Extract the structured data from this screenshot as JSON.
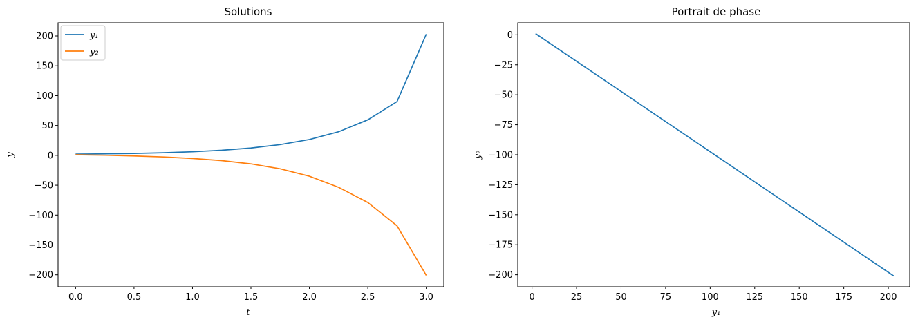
{
  "chart_data": [
    {
      "type": "line",
      "title": "Solutions",
      "xlabel": "t",
      "ylabel": "y",
      "xlim": [
        -0.15,
        3.15
      ],
      "ylim": [
        -220,
        222
      ],
      "xticks": [
        0.0,
        0.5,
        1.0,
        1.5,
        2.0,
        2.5,
        3.0
      ],
      "xtick_labels": [
        "0.0",
        "0.5",
        "1.0",
        "1.5",
        "2.0",
        "2.5",
        "3.0"
      ],
      "yticks": [
        -200,
        -150,
        -100,
        -50,
        0,
        50,
        100,
        150,
        200
      ],
      "ytick_labels": [
        "−200",
        "−150",
        "−100",
        "−50",
        "0",
        "50",
        "100",
        "150",
        "200"
      ],
      "grid": false,
      "legend": "top-left",
      "x": [
        0.0,
        0.25,
        0.5,
        0.75,
        1.0,
        1.25,
        1.5,
        1.75,
        2.0,
        2.25,
        2.5,
        2.75,
        3.0
      ],
      "series": [
        {
          "name": "y₁",
          "color": "#1f77b4",
          "values": [
            2.0,
            2.5,
            3.2,
            4.3,
            6.0,
            8.5,
            12.3,
            18.0,
            26.5,
            39.5,
            59.5,
            90.0,
            203.0
          ]
        },
        {
          "name": "y₂",
          "color": "#ff7f0e",
          "values": [
            1.0,
            0.2,
            -1.0,
            -2.7,
            -5.2,
            -8.8,
            -14.3,
            -22.5,
            -35.0,
            -53.5,
            -79.0,
            -118.0,
            -201.0
          ]
        }
      ]
    },
    {
      "type": "line",
      "title": "Portrait de phase",
      "xlabel": "y₁",
      "ylabel": "y₂",
      "xlim": [
        -8,
        212
      ],
      "ylim": [
        -210,
        10
      ],
      "xticks": [
        0,
        25,
        50,
        75,
        100,
        125,
        150,
        175,
        200
      ],
      "xtick_labels": [
        "0",
        "25",
        "50",
        "75",
        "100",
        "125",
        "150",
        "175",
        "200"
      ],
      "yticks": [
        -200,
        -175,
        -150,
        -125,
        -100,
        -75,
        -50,
        -25,
        0
      ],
      "ytick_labels": [
        "−200",
        "−175",
        "−150",
        "−125",
        "−100",
        "−75",
        "−50",
        "−25",
        "0"
      ],
      "grid": false,
      "series": [
        {
          "color": "#1f77b4",
          "x": [
            2.0,
            203.0
          ],
          "values": [
            1.0,
            -201.0
          ]
        }
      ]
    }
  ]
}
